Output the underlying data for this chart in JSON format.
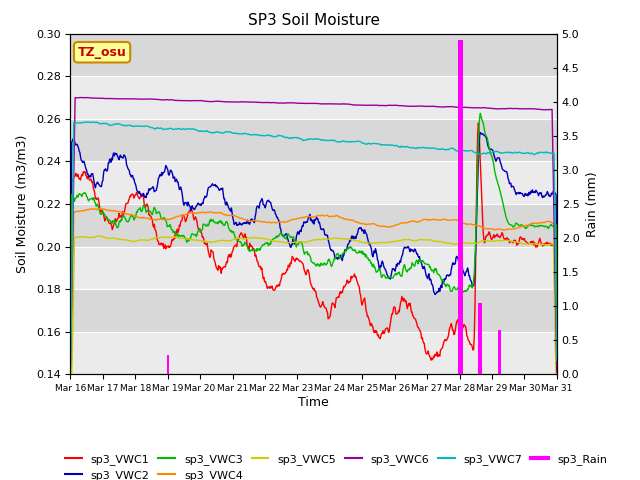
{
  "title": "SP3 Soil Moisture",
  "xlabel": "Time",
  "ylabel_left": "Soil Moisture (m3/m3)",
  "ylabel_right": "Rain (mm)",
  "ylim_left": [
    0.14,
    0.3
  ],
  "ylim_right": [
    0.0,
    5.0
  ],
  "xtick_labels": [
    "Mar 16",
    "Mar 17",
    "Mar 18",
    "Mar 19",
    "Mar 20",
    "Mar 21",
    "Mar 22",
    "Mar 23",
    "Mar 24",
    "Mar 25",
    "Mar 26",
    "Mar 27",
    "Mar 28",
    "Mar 29",
    "Mar 30",
    "Mar 31"
  ],
  "bg_light": "#ebebeb",
  "bg_dark": "#d8d8d8",
  "colors": {
    "sp3_VWC1": "#ff0000",
    "sp3_VWC2": "#0000bb",
    "sp3_VWC3": "#00bb00",
    "sp3_VWC4": "#ff8800",
    "sp3_VWC5": "#cccc00",
    "sp3_VWC6": "#990099",
    "sp3_VWC7": "#00bbbb",
    "sp3_Rain": "#ff00ff"
  },
  "annotation_text": "TZ_osu",
  "annotation_color": "#cc0000",
  "annotation_bg": "#ffff99",
  "annotation_border": "#cc8800",
  "linewidth": 1.0
}
